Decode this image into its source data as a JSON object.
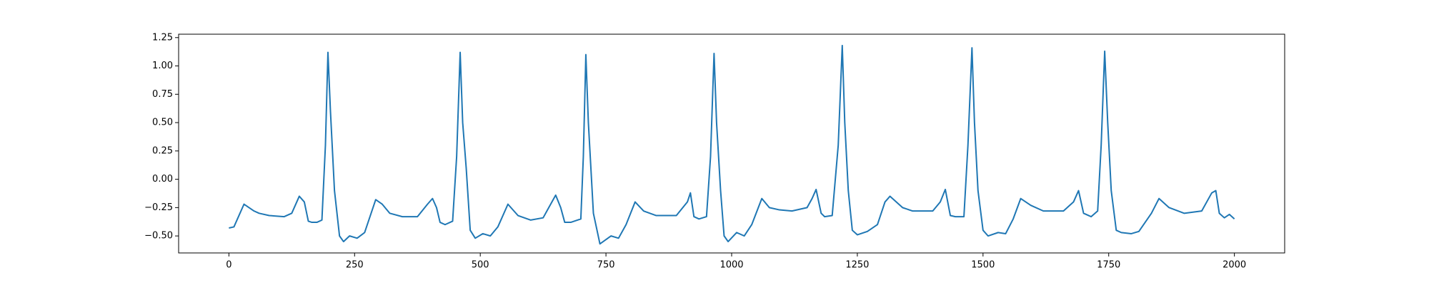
{
  "chart_data": {
    "type": "line",
    "x": [
      0,
      10,
      30,
      50,
      60,
      80,
      110,
      125,
      140,
      150,
      158,
      165,
      175,
      185,
      192,
      197,
      202,
      210,
      220,
      228,
      240,
      255,
      270,
      292,
      305,
      320,
      345,
      375,
      395,
      405,
      413,
      420,
      430,
      445,
      453,
      460,
      465,
      472,
      480,
      490,
      505,
      520,
      535,
      555,
      575,
      600,
      625,
      650,
      660,
      668,
      680,
      700,
      705,
      710,
      715,
      725,
      738,
      760,
      775,
      790,
      808,
      825,
      850,
      890,
      912,
      918,
      925,
      935,
      950,
      958,
      965,
      970,
      978,
      985,
      993,
      1010,
      1025,
      1040,
      1060,
      1075,
      1095,
      1120,
      1150,
      1160,
      1168,
      1178,
      1185,
      1200,
      1212,
      1220,
      1225,
      1232,
      1240,
      1250,
      1270,
      1290,
      1305,
      1315,
      1340,
      1360,
      1400,
      1415,
      1425,
      1435,
      1445,
      1462,
      1470,
      1478,
      1483,
      1490,
      1500,
      1510,
      1530,
      1545,
      1560,
      1575,
      1595,
      1620,
      1660,
      1680,
      1690,
      1700,
      1715,
      1728,
      1735,
      1742,
      1748,
      1755,
      1765,
      1775,
      1795,
      1810,
      1835,
      1850,
      1870,
      1900,
      1935,
      1955,
      1963,
      1970,
      1980,
      1990,
      2000
    ],
    "series": [
      {
        "color": "#1f77b4",
        "values": [
          -0.43,
          -0.42,
          -0.22,
          -0.28,
          -0.3,
          -0.32,
          -0.33,
          -0.3,
          -0.15,
          -0.2,
          -0.37,
          -0.38,
          -0.38,
          -0.36,
          0.3,
          1.12,
          0.6,
          -0.1,
          -0.5,
          -0.55,
          -0.5,
          -0.52,
          -0.47,
          -0.18,
          -0.22,
          -0.3,
          -0.33,
          -0.33,
          -0.22,
          -0.17,
          -0.25,
          -0.38,
          -0.4,
          -0.37,
          0.2,
          1.12,
          0.5,
          0.1,
          -0.45,
          -0.52,
          -0.48,
          -0.5,
          -0.42,
          -0.22,
          -0.32,
          -0.36,
          -0.34,
          -0.14,
          -0.25,
          -0.38,
          -0.38,
          -0.35,
          0.2,
          1.1,
          0.5,
          -0.3,
          -0.57,
          -0.5,
          -0.52,
          -0.4,
          -0.2,
          -0.28,
          -0.32,
          -0.32,
          -0.2,
          -0.12,
          -0.33,
          -0.35,
          -0.33,
          0.2,
          1.11,
          0.5,
          -0.1,
          -0.5,
          -0.55,
          -0.47,
          -0.5,
          -0.4,
          -0.17,
          -0.25,
          -0.27,
          -0.28,
          -0.25,
          -0.17,
          -0.09,
          -0.3,
          -0.33,
          -0.32,
          0.3,
          1.18,
          0.5,
          -0.1,
          -0.45,
          -0.49,
          -0.46,
          -0.4,
          -0.2,
          -0.15,
          -0.25,
          -0.28,
          -0.28,
          -0.2,
          -0.09,
          -0.32,
          -0.33,
          -0.33,
          0.3,
          1.16,
          0.5,
          -0.1,
          -0.45,
          -0.5,
          -0.47,
          -0.48,
          -0.35,
          -0.17,
          -0.23,
          -0.28,
          -0.28,
          -0.2,
          -0.1,
          -0.3,
          -0.33,
          -0.28,
          0.3,
          1.13,
          0.5,
          -0.1,
          -0.45,
          -0.47,
          -0.48,
          -0.46,
          -0.3,
          -0.17,
          -0.25,
          -0.3,
          -0.28,
          -0.12,
          -0.1,
          -0.3,
          -0.34,
          -0.31,
          -0.35
        ]
      }
    ],
    "xlim": [
      -100,
      2100
    ],
    "xticks": [
      0,
      250,
      500,
      750,
      1000,
      1250,
      1500,
      1750,
      2000
    ],
    "ylim": [
      -0.65,
      1.28
    ],
    "yticks": [
      {
        "value": -0.5,
        "label": "−0.50"
      },
      {
        "value": -0.25,
        "label": "−0.25"
      },
      {
        "value": 0,
        "label": "0.00"
      },
      {
        "value": 0.25,
        "label": "0.25"
      },
      {
        "value": 0.5,
        "label": "0.50"
      },
      {
        "value": 0.75,
        "label": "0.75"
      },
      {
        "value": 1,
        "label": "1.00"
      },
      {
        "value": 1.25,
        "label": "1.25"
      }
    ]
  }
}
